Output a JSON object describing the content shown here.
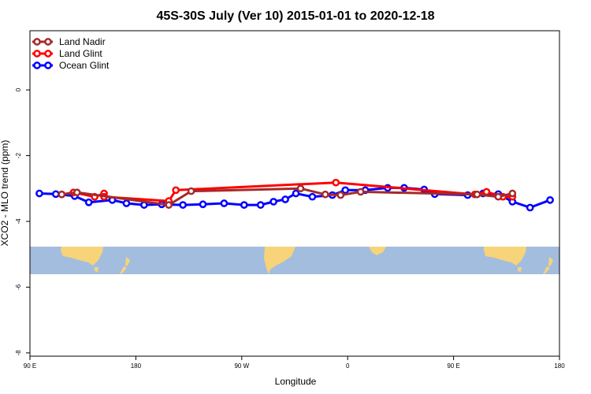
{
  "chart_data": {
    "type": "line",
    "title": "45S-30S July (Ver 10)   2015-01-01 to 2020-12-18",
    "xlabel": "Longitude",
    "ylabel": "XCO2 - MLO trend (ppm)",
    "x_ticks": [
      {
        "value": 90,
        "label": "90 E"
      },
      {
        "value": 180,
        "label": "180"
      },
      {
        "value": 270,
        "label": "90 W"
      },
      {
        "value": 360,
        "label": "0"
      },
      {
        "value": 450,
        "label": "90 E"
      },
      {
        "value": 540,
        "label": "180"
      }
    ],
    "y_ticks": [
      0,
      -2,
      -4,
      -6,
      -8
    ],
    "xlim": [
      90,
      540
    ],
    "ylim": [
      -8.1,
      1.8
    ],
    "grid": false,
    "legend_position": "top-left",
    "series": [
      {
        "name": "Land Nadir",
        "color": "#a52a2a",
        "x": [
          117,
          130,
          208,
          227,
          320,
          341,
          354,
          371,
          470,
          488,
          500
        ],
        "y": [
          -3.18,
          -3.12,
          -3.5,
          -3.08,
          -3.0,
          -3.18,
          -3.2,
          -3.1,
          -3.18,
          -3.25,
          -3.15
        ]
      },
      {
        "name": "Land Glint",
        "color": "#ff0000",
        "x": [
          117,
          127,
          145,
          153,
          153,
          208,
          214,
          350,
          468,
          478,
          492,
          500
        ],
        "y": [
          -3.18,
          -3.12,
          -3.25,
          -3.15,
          -3.25,
          -3.38,
          -3.05,
          -2.82,
          -3.18,
          -3.1,
          -3.25,
          -3.25
        ]
      },
      {
        "name": "Ocean Glint",
        "color": "#0000ff",
        "x": [
          98,
          112,
          128,
          140,
          160,
          172,
          187,
          202,
          220,
          237,
          255,
          272,
          286,
          297,
          307,
          316,
          330,
          347,
          358,
          375,
          394,
          408,
          425,
          434,
          462,
          475,
          488,
          500,
          515,
          532
        ],
        "y": [
          -3.15,
          -3.17,
          -3.23,
          -3.42,
          -3.35,
          -3.45,
          -3.5,
          -3.48,
          -3.5,
          -3.48,
          -3.45,
          -3.5,
          -3.5,
          -3.4,
          -3.33,
          -3.15,
          -3.25,
          -3.2,
          -3.05,
          -3.05,
          -2.98,
          -2.98,
          -3.03,
          -3.17,
          -3.2,
          -3.15,
          -3.17,
          -3.4,
          -3.58,
          -3.35
        ]
      }
    ]
  },
  "map_strip": {
    "ocean_color": "#a3bddf",
    "land_color": "#f7d479"
  }
}
